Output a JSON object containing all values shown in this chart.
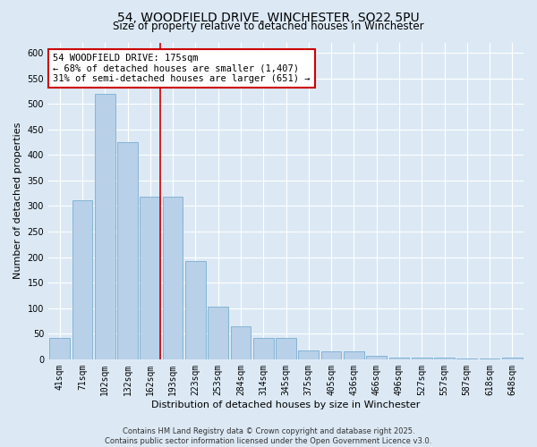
{
  "title_line1": "54, WOODFIELD DRIVE, WINCHESTER, SO22 5PU",
  "title_line2": "Size of property relative to detached houses in Winchester",
  "xlabel": "Distribution of detached houses by size in Winchester",
  "ylabel": "Number of detached properties",
  "categories": [
    "41sqm",
    "71sqm",
    "102sqm",
    "132sqm",
    "162sqm",
    "193sqm",
    "223sqm",
    "253sqm",
    "284sqm",
    "314sqm",
    "345sqm",
    "375sqm",
    "405sqm",
    "436sqm",
    "466sqm",
    "496sqm",
    "527sqm",
    "557sqm",
    "587sqm",
    "618sqm",
    "648sqm"
  ],
  "values": [
    42,
    312,
    520,
    425,
    318,
    318,
    193,
    103,
    65,
    42,
    42,
    18,
    16,
    16,
    7,
    4,
    4,
    3,
    2,
    1,
    3
  ],
  "bar_color": "#b8d0e8",
  "bar_edge_color": "#7aaed0",
  "vline_color": "#cc0000",
  "annotation_text": "54 WOODFIELD DRIVE: 175sqm\n← 68% of detached houses are smaller (1,407)\n31% of semi-detached houses are larger (651) →",
  "annotation_box_color": "#ffffff",
  "annotation_box_edge": "#cc0000",
  "background_color": "#dce9f5",
  "plot_bg_color": "#dce9f5",
  "grid_color": "#ffffff",
  "ylim": [
    0,
    620
  ],
  "yticks": [
    0,
    50,
    100,
    150,
    200,
    250,
    300,
    350,
    400,
    450,
    500,
    550,
    600
  ],
  "footer_line1": "Contains HM Land Registry data © Crown copyright and database right 2025.",
  "footer_line2": "Contains public sector information licensed under the Open Government Licence v3.0.",
  "title_fontsize": 10,
  "subtitle_fontsize": 8.5,
  "axis_label_fontsize": 8,
  "tick_fontsize": 7,
  "annotation_fontsize": 7.5,
  "footer_fontsize": 6
}
